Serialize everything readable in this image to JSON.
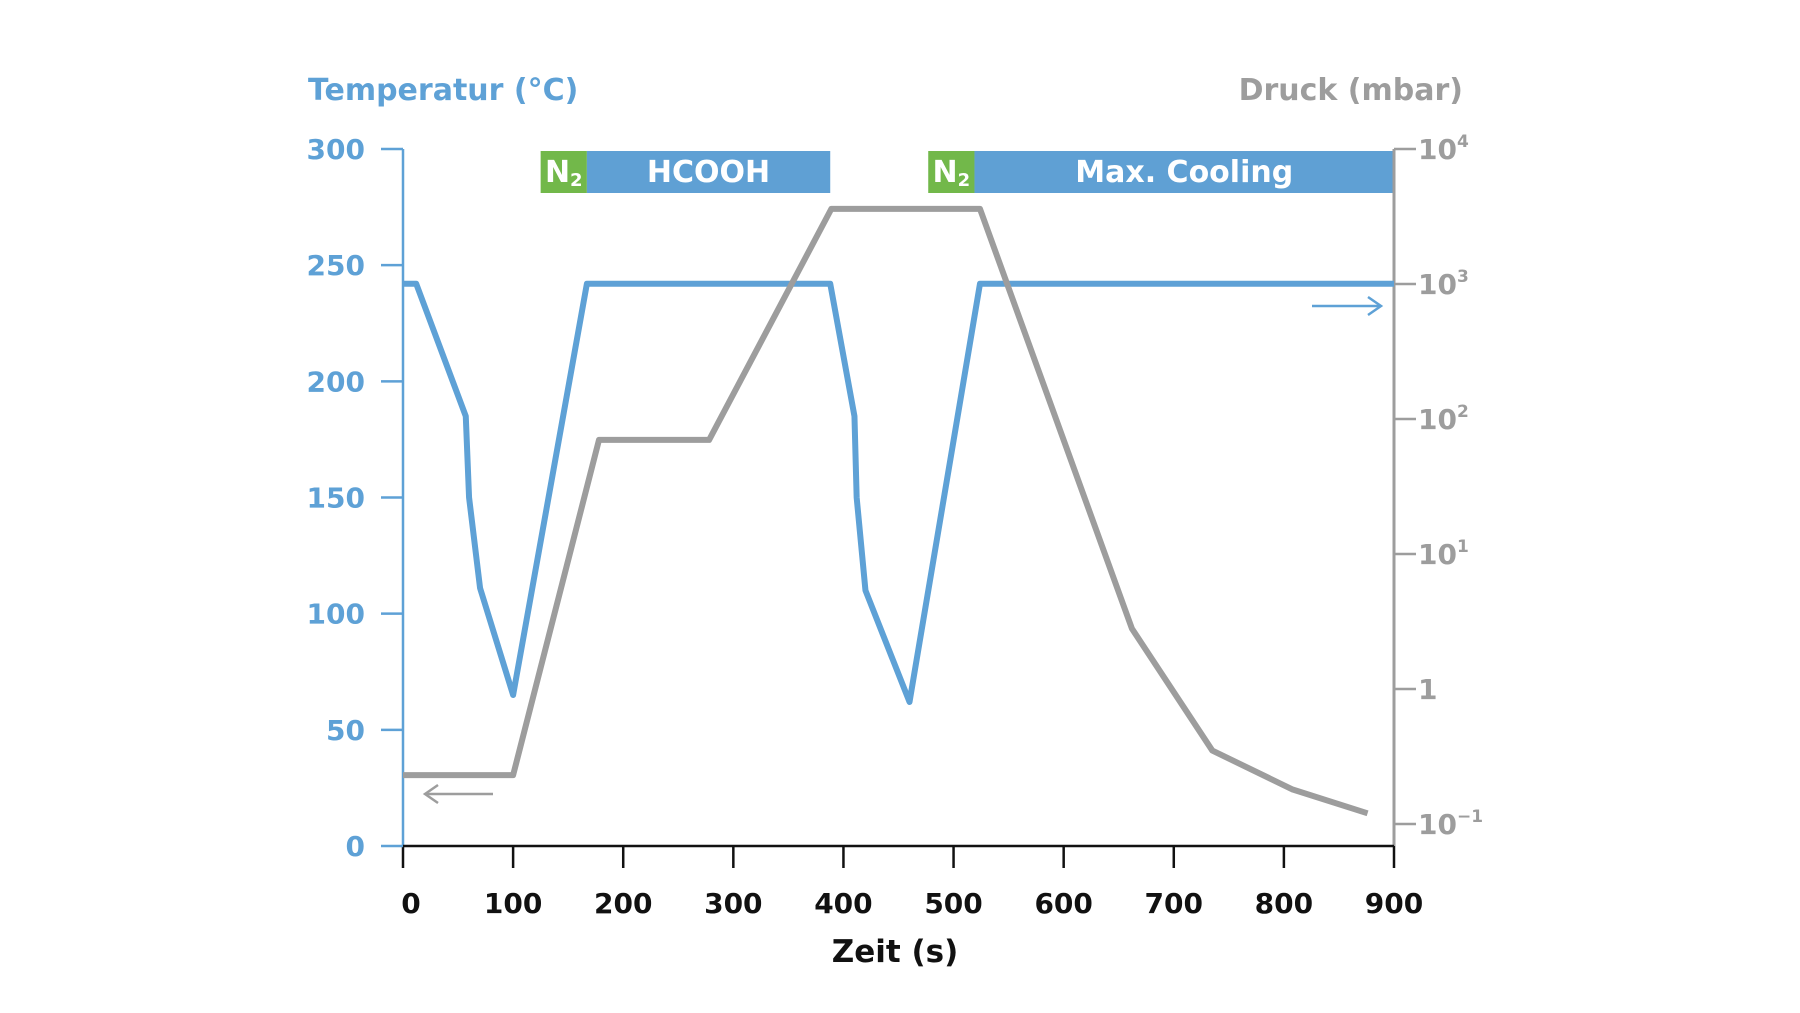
{
  "chart_data": {
    "type": "line",
    "xlabel": "Zeit (s)",
    "ylabel_left": "Temperatur (°C)",
    "ylabel_right": "Druck (mbar)",
    "xlim": [
      0,
      900
    ],
    "ylim_left": [
      0,
      300
    ],
    "ylim_right": [
      0.1,
      10000
    ],
    "right_axis_scale": "log",
    "x_ticks": [
      "0",
      "100",
      "200",
      "300",
      "400",
      "500",
      "600",
      "700",
      "800",
      "900"
    ],
    "y_left_ticks": [
      "0",
      "50",
      "100",
      "150",
      "200",
      "250",
      "300"
    ],
    "y_right_ticks": [
      {
        "value": 0.1,
        "base": "10",
        "exp": "−1"
      },
      {
        "value": 1,
        "base": "1",
        "exp": ""
      },
      {
        "value": 10,
        "base": "10",
        "exp": "1"
      },
      {
        "value": 100,
        "base": "10",
        "exp": "2"
      },
      {
        "value": 1000,
        "base": "10",
        "exp": "3"
      },
      {
        "value": 10000,
        "base": "10",
        "exp": "4"
      }
    ],
    "series": [
      {
        "axis": "left",
        "color": "#5ea1d6",
        "x": [
          0,
          12,
          57,
          60,
          70,
          100,
          167,
          388,
          410,
          412,
          420,
          460,
          524,
          900
        ],
        "y": [
          242,
          242,
          185,
          150,
          111,
          65,
          242,
          242,
          185,
          150,
          110,
          62,
          242,
          242
        ]
      },
      {
        "axis": "right",
        "color": "#9d9d9d",
        "x": [
          0,
          100,
          178,
          278,
          389,
          524,
          662,
          735,
          808,
          876
        ],
        "y": [
          0.23,
          0.23,
          70,
          70,
          3600,
          3600,
          2.8,
          0.35,
          0.18,
          0.12
        ]
      }
    ],
    "phases": [
      {
        "label": "N",
        "sub": "2",
        "start": 125,
        "end": 167,
        "color": "#72b84a"
      },
      {
        "label": "HCOOH",
        "sub": "",
        "start": 167,
        "end": 388,
        "color": "#5fa0d4"
      },
      {
        "label": "N",
        "sub": "2",
        "start": 477,
        "end": 519,
        "color": "#72b84a"
      },
      {
        "label": "Max. Cooling",
        "sub": "",
        "start": 519,
        "end": 900,
        "color": "#5fa0d4"
      }
    ],
    "colors": {
      "temperature": "#5ea1d6",
      "pressure": "#9d9d9d",
      "axis": "#111111"
    },
    "grid": false
  }
}
